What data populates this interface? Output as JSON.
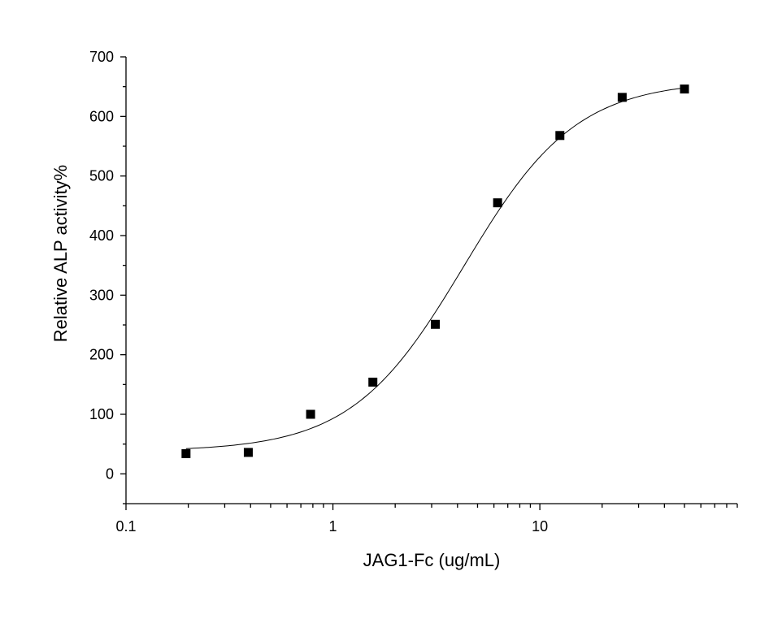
{
  "chart_data": {
    "type": "scatter",
    "title": "",
    "xlabel": "JAG1-Fc (ug/mL)",
    "ylabel": "Relative ALP activity%",
    "x_scale": "log",
    "xlim": [
      0.1,
      90
    ],
    "ylim": [
      -50,
      700
    ],
    "x_ticks": [
      {
        "value": 0.1,
        "label": "0.1"
      },
      {
        "value": 1,
        "label": "1"
      },
      {
        "value": 10,
        "label": "10"
      }
    ],
    "y_ticks": [
      {
        "value": 0,
        "label": "0"
      },
      {
        "value": 100,
        "label": "100"
      },
      {
        "value": 200,
        "label": "200"
      },
      {
        "value": 300,
        "label": "300"
      },
      {
        "value": 400,
        "label": "400"
      },
      {
        "value": 500,
        "label": "500"
      },
      {
        "value": 600,
        "label": "600"
      },
      {
        "value": 700,
        "label": "700"
      }
    ],
    "grid": false,
    "legend": "none",
    "marker_color": "#000000",
    "series": [
      {
        "marker": "square",
        "x": [
          0.195,
          0.39,
          0.78,
          1.56,
          3.125,
          6.25,
          12.5,
          25,
          50
        ],
        "y": [
          34,
          36,
          100,
          154,
          251,
          455,
          568,
          632,
          646
        ]
      }
    ],
    "fit": {
      "type": "4PL",
      "bottom": 38,
      "top": 660,
      "ec50": 4.3,
      "hill": 1.6
    }
  }
}
